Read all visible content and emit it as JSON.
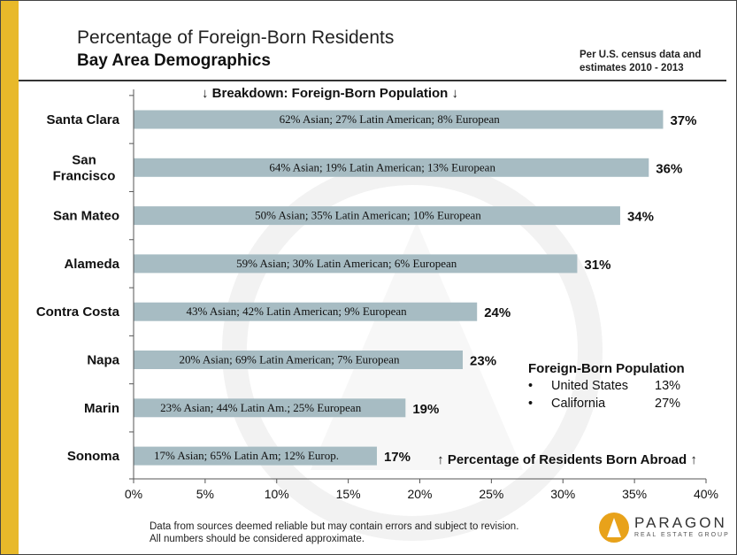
{
  "title": "Percentage of Foreign-Born Residents",
  "subtitle": "Bay Area Demographics",
  "note": "Per U.S. census data and estimates 2010 - 2013",
  "breakdown_label": "↓ Breakdown: Foreign-Born Population ↓",
  "axis_caption": "↑ Percentage of Residents Born Abroad ↑",
  "legend": {
    "heading": "Foreign-Born Population",
    "items": [
      {
        "bullet": "•",
        "label": "United States",
        "value": "13%"
      },
      {
        "bullet": "•",
        "label": "California",
        "value": "27%"
      }
    ]
  },
  "footer": {
    "line1": "Data from sources deemed reliable but may contain errors and subject to revision.",
    "line2": "All numbers should be considered approximate."
  },
  "logo": {
    "name": "PARAGON",
    "tagline": "REAL ESTATE GROUP"
  },
  "colors": {
    "bar": "#a7bcc3",
    "accent": "#e8b92a",
    "text": "#111111"
  },
  "chart_data": {
    "type": "bar",
    "orientation": "horizontal",
    "categories": [
      "Santa Clara",
      "San Francisco",
      "San Mateo",
      "Alameda",
      "Contra Costa",
      "Napa",
      "Marin",
      "Sonoma"
    ],
    "values": [
      37,
      36,
      34,
      31,
      24,
      23,
      19,
      17
    ],
    "value_labels": [
      "37%",
      "36%",
      "34%",
      "31%",
      "24%",
      "23%",
      "19%",
      "17%"
    ],
    "bar_annotations": [
      "62% Asian; 27% Latin American; 8% European",
      "64% Asian; 19% Latin American; 13% European",
      "50% Asian; 35% Latin American; 10% European",
      "59% Asian; 30% Latin American; 6% European",
      "43% Asian; 42% Latin American; 9% European",
      "20% Asian; 69% Latin American; 7% European",
      "23% Asian; 44% Latin Am.; 25% European",
      "17% Asian; 65% Latin Am; 12% Europ."
    ],
    "xlim": [
      0,
      40
    ],
    "xticks": [
      "0%",
      "5%",
      "10%",
      "15%",
      "20%",
      "25%",
      "30%",
      "35%",
      "40%"
    ],
    "grid": false
  }
}
